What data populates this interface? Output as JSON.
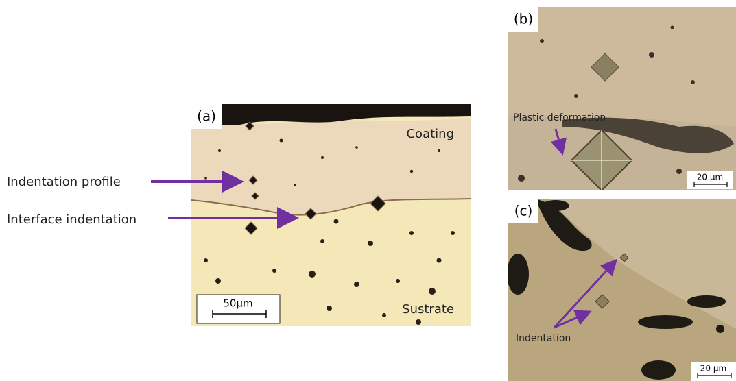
{
  "panels": [
    {
      "label": "(a)",
      "region_top": "Coating",
      "region_bottom": "Sustrate",
      "scale_bar": "50µm",
      "callouts": [
        "Indentation profile",
        "Interface indentation"
      ]
    },
    {
      "label": "(b)",
      "annotation": "Plastic deformation",
      "scale_bar": "20 µm"
    },
    {
      "label": "(c)",
      "annotation": "Indentation",
      "scale_bar": "20 µm"
    }
  ]
}
